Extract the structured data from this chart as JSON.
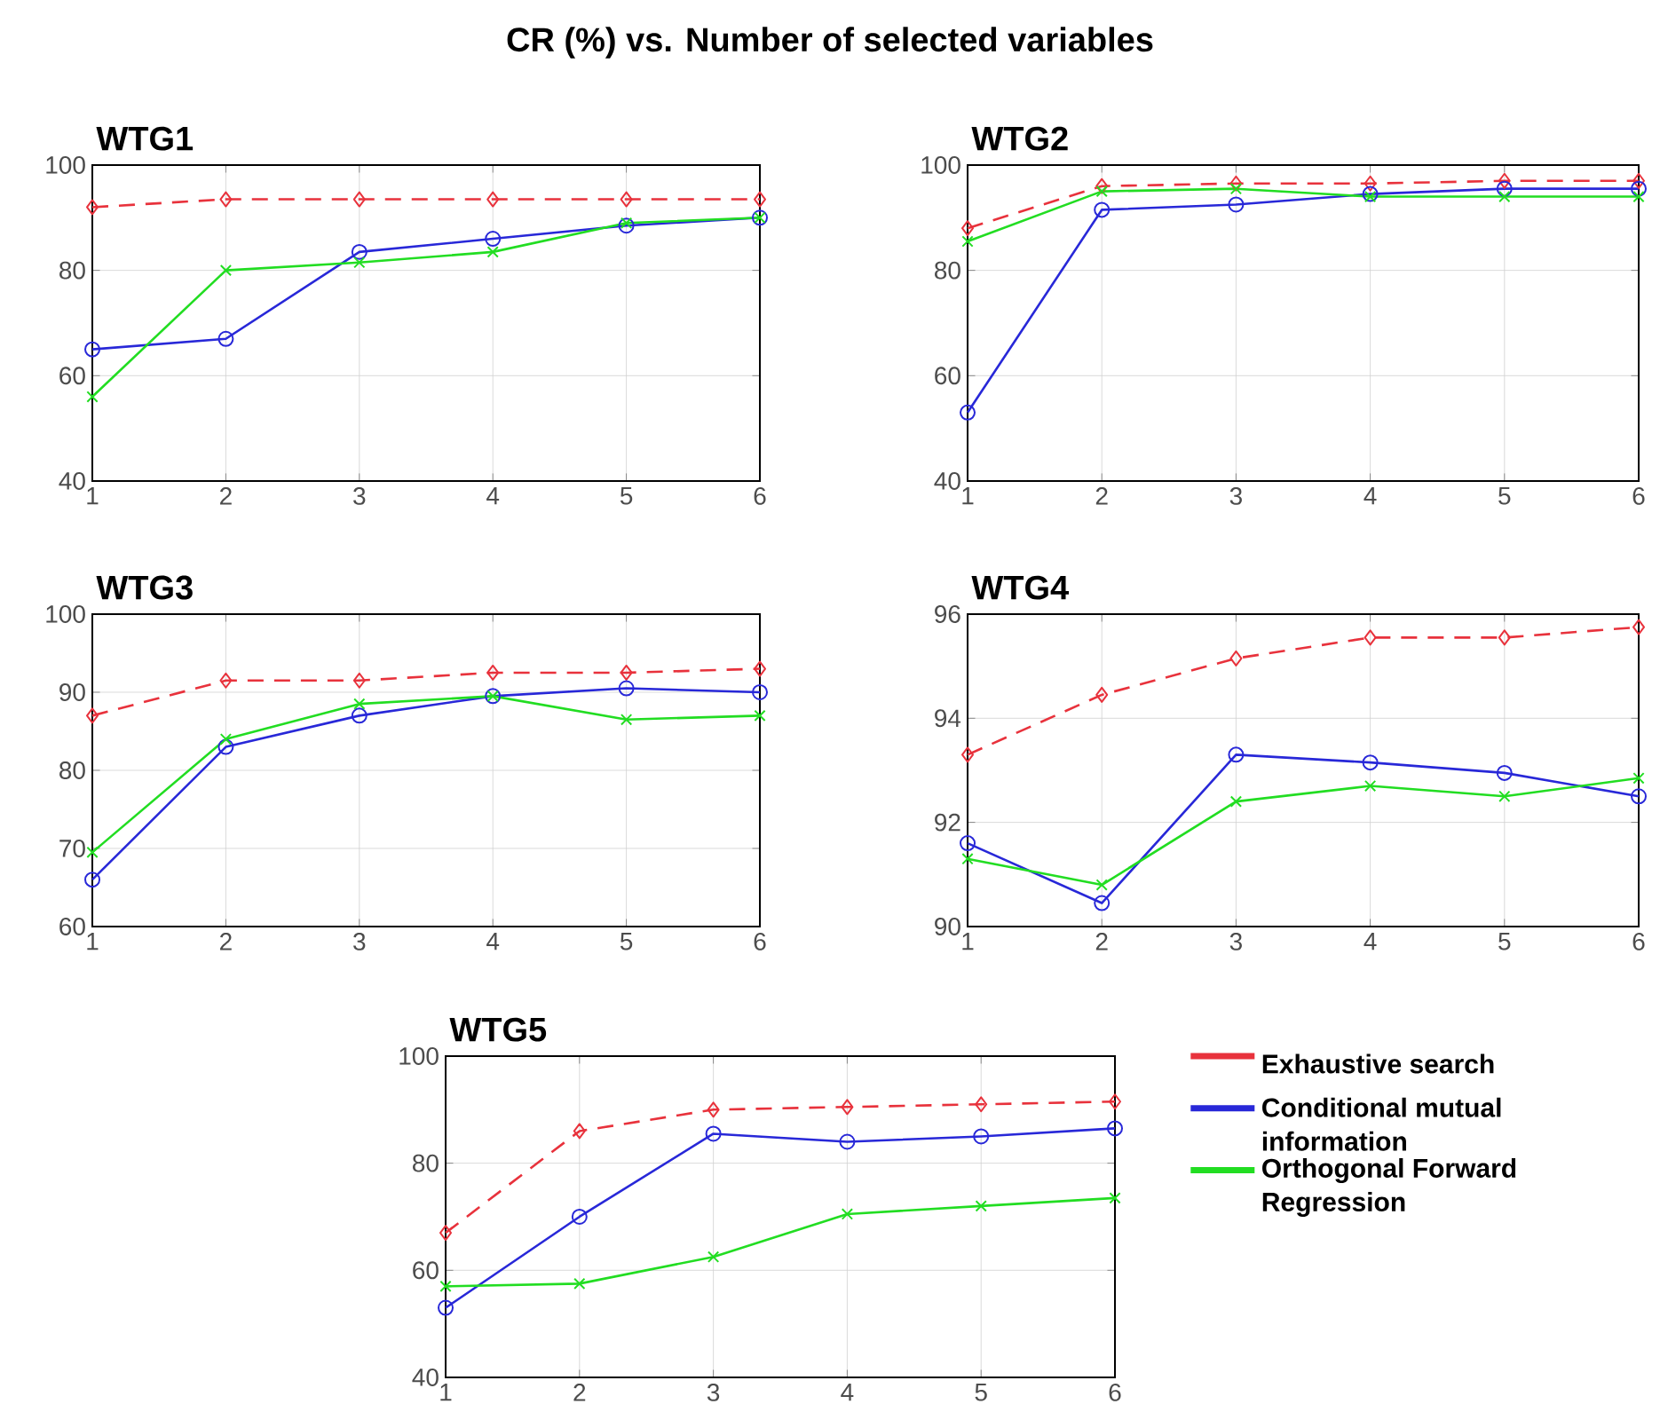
{
  "chart_data": [
    {
      "type": "line",
      "title": "WTG1",
      "annotations": [
        "CR (%) vs. Number of selected variables"
      ],
      "x": [
        1,
        2,
        3,
        4,
        5,
        6
      ],
      "xlim": [
        1,
        6
      ],
      "xticks": [
        1,
        2,
        3,
        4,
        5,
        6
      ],
      "ylim": [
        40,
        100
      ],
      "yticks": [
        40,
        60,
        80,
        100
      ],
      "grid": true,
      "series": [
        {
          "color": "#e8323c",
          "marker": "diamond",
          "line_style": "dashed",
          "values": [
            92,
            93.5,
            93.5,
            93.5,
            93.5,
            93.5
          ]
        },
        {
          "color": "#2828d8",
          "marker": "circle",
          "line_style": "solid",
          "values": [
            65,
            67,
            83.5,
            86,
            88.5,
            90
          ]
        },
        {
          "color": "#22dd22",
          "marker": "cross",
          "line_style": "solid",
          "values": [
            56,
            80,
            81.5,
            83.5,
            89,
            90
          ]
        }
      ]
    },
    {
      "type": "line",
      "title": "WTG2",
      "x": [
        1,
        2,
        3,
        4,
        5,
        6
      ],
      "xlim": [
        1,
        6
      ],
      "xticks": [
        1,
        2,
        3,
        4,
        5,
        6
      ],
      "ylim": [
        40,
        100
      ],
      "yticks": [
        40,
        60,
        80,
        100
      ],
      "grid": true,
      "series": [
        {
          "color": "#e8323c",
          "marker": "diamond",
          "line_style": "dashed",
          "values": [
            88,
            96,
            96.5,
            96.5,
            97,
            97
          ]
        },
        {
          "color": "#2828d8",
          "marker": "circle",
          "line_style": "solid",
          "values": [
            53,
            91.5,
            92.5,
            94.5,
            95.5,
            95.5
          ]
        },
        {
          "color": "#22dd22",
          "marker": "cross",
          "line_style": "solid",
          "values": [
            85.5,
            95,
            95.5,
            94,
            94,
            94
          ]
        }
      ]
    },
    {
      "type": "line",
      "title": "WTG3",
      "x": [
        1,
        2,
        3,
        4,
        5,
        6
      ],
      "xlim": [
        1,
        6
      ],
      "xticks": [
        1,
        2,
        3,
        4,
        5,
        6
      ],
      "ylim": [
        60,
        100
      ],
      "yticks": [
        60,
        70,
        80,
        90,
        100
      ],
      "grid": true,
      "series": [
        {
          "color": "#e8323c",
          "marker": "diamond",
          "line_style": "dashed",
          "values": [
            87,
            91.5,
            91.5,
            92.5,
            92.5,
            93
          ]
        },
        {
          "color": "#2828d8",
          "marker": "circle",
          "line_style": "solid",
          "values": [
            66,
            83,
            87,
            89.5,
            90.5,
            90
          ]
        },
        {
          "color": "#22dd22",
          "marker": "cross",
          "line_style": "solid",
          "values": [
            69.5,
            84,
            88.5,
            89.5,
            86.5,
            87
          ]
        }
      ]
    },
    {
      "type": "line",
      "title": "WTG4",
      "x": [
        1,
        2,
        3,
        4,
        5,
        6
      ],
      "xlim": [
        1,
        6
      ],
      "xticks": [
        1,
        2,
        3,
        4,
        5,
        6
      ],
      "ylim": [
        90,
        96
      ],
      "yticks": [
        90,
        92,
        94,
        96
      ],
      "grid": true,
      "series": [
        {
          "color": "#e8323c",
          "marker": "diamond",
          "line_style": "dashed",
          "values": [
            93.3,
            94.45,
            95.15,
            95.55,
            95.55,
            95.75
          ]
        },
        {
          "color": "#2828d8",
          "marker": "circle",
          "line_style": "solid",
          "values": [
            91.6,
            90.45,
            93.3,
            93.15,
            92.95,
            92.5
          ]
        },
        {
          "color": "#22dd22",
          "marker": "cross",
          "line_style": "solid",
          "values": [
            91.3,
            90.8,
            92.4,
            92.7,
            92.5,
            92.85
          ]
        }
      ]
    },
    {
      "type": "line",
      "title": "WTG5",
      "x": [
        1,
        2,
        3,
        4,
        5,
        6
      ],
      "xlim": [
        1,
        6
      ],
      "xticks": [
        1,
        2,
        3,
        4,
        5,
        6
      ],
      "ylim": [
        40,
        100
      ],
      "yticks": [
        40,
        60,
        80,
        100
      ],
      "grid": true,
      "legend": "right",
      "series": [
        {
          "name": "Exhaustive search",
          "color": "#e8323c",
          "marker": "diamond",
          "line_style": "dashed",
          "values": [
            67,
            86,
            90,
            90.5,
            91,
            91.5
          ]
        },
        {
          "name": "Conditional mutual information",
          "color": "#2828d8",
          "marker": "circle",
          "line_style": "solid",
          "values": [
            53,
            70,
            85.5,
            84,
            85,
            86.5
          ]
        },
        {
          "name": "Orthogonal Forward Regression",
          "color": "#22dd22",
          "marker": "cross",
          "line_style": "solid",
          "values": [
            57,
            57.5,
            62.5,
            70.5,
            72,
            73.5
          ]
        }
      ]
    }
  ]
}
